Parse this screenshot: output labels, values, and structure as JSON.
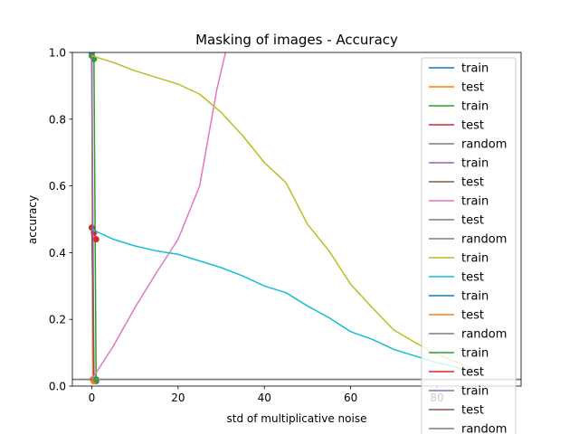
{
  "chart_data": {
    "type": "line",
    "title": "Masking of images - Accuracy",
    "xlabel": "std of multiplicative noise",
    "ylabel": "accuracy",
    "xlim": [
      -4.5,
      99.5
    ],
    "ylim": [
      0,
      1
    ],
    "x_ticks": [
      0,
      20,
      40,
      60,
      80
    ],
    "x_tick_labels": [
      "0",
      "20",
      "40",
      "60",
      "80"
    ],
    "y_ticks": [
      0.0,
      0.2,
      0.4,
      0.6,
      0.8,
      1.0
    ],
    "y_tick_labels": [
      "0.0",
      "0.2",
      "0.4",
      "0.6",
      "0.8",
      "1.0"
    ],
    "grid": false,
    "legend_position": "right",
    "series": [
      {
        "name": "train",
        "color": "#1f77b4",
        "marker": true,
        "x": [
          0,
          0.25,
          0.5,
          0.75,
          1
        ],
        "y": [
          1.0,
          0.02,
          0.015,
          0.015,
          0.015
        ]
      },
      {
        "name": "test",
        "color": "#ff7f0e",
        "marker": true,
        "x": [
          0,
          0.25,
          0.5
        ],
        "y": [
          0.99,
          0.02,
          0.015
        ]
      },
      {
        "name": "train",
        "color": "#2ca02c",
        "marker": true,
        "x": [
          0,
          0.5,
          1
        ],
        "y": [
          0.99,
          0.98,
          0.02
        ]
      },
      {
        "name": "test",
        "color": "#d62728",
        "marker": true,
        "x": [
          0,
          0.5,
          1
        ],
        "y": [
          0.475,
          0.46,
          0.44
        ]
      },
      {
        "name": "random",
        "color": "#7f7f7f",
        "marker": false,
        "x": [
          -4.5,
          99.5
        ],
        "y": [
          0.02,
          0.02
        ]
      },
      {
        "name": "train",
        "color": "#9467bd",
        "marker": false,
        "x": [
          0,
          0.2,
          0.5
        ],
        "y": [
          1.0,
          0.6,
          0.03
        ]
      },
      {
        "name": "test",
        "color": "#8c564b",
        "marker": false,
        "x": [
          0,
          0.3,
          0.5
        ],
        "y": [
          0.48,
          0.2,
          0.03
        ]
      },
      {
        "name": "train",
        "color": "#e377c2",
        "marker": false,
        "x": [
          0,
          5,
          10,
          15,
          20,
          25,
          29,
          31
        ],
        "y": [
          0.02,
          0.12,
          0.235,
          0.34,
          0.44,
          0.6,
          0.89,
          1.0
        ]
      },
      {
        "name": "test",
        "color": "#7f7f7f",
        "marker": false,
        "x": [
          -4.5,
          99.5
        ],
        "y": [
          0.02,
          0.02
        ]
      },
      {
        "name": "random",
        "color": "#7f7f7f",
        "marker": false,
        "x": [
          -4.5,
          99.5
        ],
        "y": [
          0.02,
          0.02
        ]
      },
      {
        "name": "train",
        "color": "#bcbd22",
        "marker": false,
        "x": [
          0,
          5,
          10,
          15,
          20,
          25,
          30,
          35,
          40,
          45,
          50,
          55,
          60,
          65,
          70,
          75,
          80,
          85,
          90
        ],
        "y": [
          0.99,
          0.97,
          0.945,
          0.925,
          0.905,
          0.875,
          0.82,
          0.75,
          0.67,
          0.61,
          0.485,
          0.405,
          0.305,
          0.235,
          0.168,
          0.13,
          0.095,
          0.07,
          0.04
        ]
      },
      {
        "name": "test",
        "color": "#17becf",
        "marker": false,
        "x": [
          0,
          5,
          10,
          15,
          20,
          25,
          30,
          35,
          40,
          45,
          50,
          55,
          60,
          65,
          70,
          75,
          80,
          85,
          90
        ],
        "y": [
          0.47,
          0.44,
          0.42,
          0.405,
          0.395,
          0.375,
          0.355,
          0.33,
          0.3,
          0.28,
          0.24,
          0.205,
          0.163,
          0.14,
          0.11,
          0.09,
          0.07,
          0.055,
          0.035
        ]
      },
      {
        "name": "train",
        "color": "#1f77b4",
        "marker": false,
        "x": [],
        "y": []
      },
      {
        "name": "test",
        "color": "#ff7f0e",
        "marker": false,
        "x": [],
        "y": []
      },
      {
        "name": "random",
        "color": "#7f7f7f",
        "marker": false,
        "x": [],
        "y": []
      },
      {
        "name": "train",
        "color": "#2ca02c",
        "marker": false,
        "x": [],
        "y": []
      },
      {
        "name": "test",
        "color": "#d62728",
        "marker": false,
        "x": [],
        "y": []
      },
      {
        "name": "train",
        "color": "#9467bd",
        "marker": false,
        "x": [],
        "y": []
      },
      {
        "name": "test",
        "color": "#8c564b",
        "marker": false,
        "x": [],
        "y": []
      },
      {
        "name": "random",
        "color": "#7f7f7f",
        "marker": false,
        "x": [],
        "y": []
      }
    ]
  }
}
